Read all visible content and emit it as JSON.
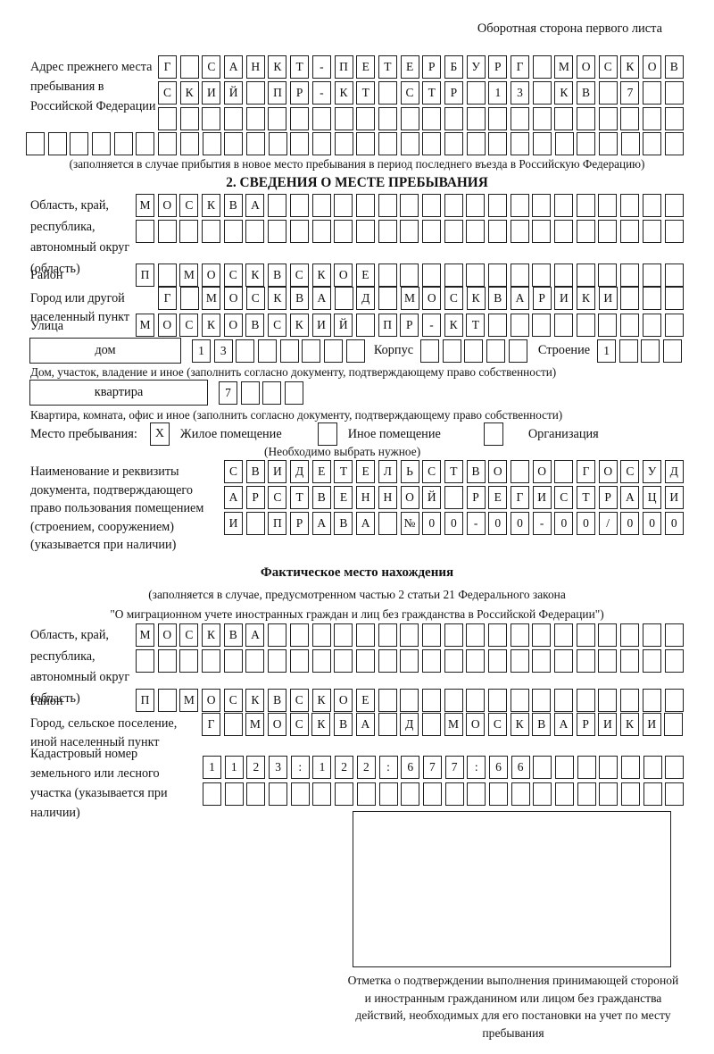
{
  "header": {
    "note": "Оборотная сторона первого листа"
  },
  "prev_address": {
    "label": "Адрес прежнего места пребывания в Российской Федерации",
    "row1": {
      "cells": "Г САНКТ-ПЕТЕРБУРГ МОСКОВ",
      "len": 24
    },
    "row2": {
      "cells": "СКИЙ ПР-КТ СТР 13 КВ 7",
      "len": 24
    },
    "row3": {
      "cells": "",
      "len": 24
    },
    "row4": {
      "cells": "",
      "len": 30
    },
    "caption": "(заполняется в случае прибытия в новое место пребывания в период последнего въезда в Российскую Федерацию)"
  },
  "section2": {
    "title": "2. СВЕДЕНИЯ О МЕСТЕ ПРЕБЫВАНИЯ",
    "region": {
      "label": "Область, край, республика, автономный округ (область)",
      "row1": {
        "cells": "МОСКВА",
        "len": 25
      },
      "row2": {
        "cells": "",
        "len": 25
      }
    },
    "district": {
      "label": "Район",
      "row": {
        "cells": "П МОСКВСКОЕ",
        "len": 25
      }
    },
    "city": {
      "label": "Город или другой населенный пункт",
      "row": {
        "cells": "Г МОСКВА Д МОСКВАРИКИ",
        "len": 24
      }
    },
    "street": {
      "label": "Улица",
      "row": {
        "cells": "МОСКОВСКИЙ ПР-КТ",
        "len": 25
      }
    },
    "house": {
      "field_label": "дом",
      "number": {
        "cells": "13",
        "len": 8
      },
      "korpus_label": "Корпус",
      "korpus": {
        "cells": "",
        "len": 5
      },
      "stroenie_label": "Строение",
      "stroenie": {
        "cells": "1",
        "len": 4
      },
      "caption": "Дом, участок, владение и иное (заполнить согласно документу, подтверждающему право собственности)"
    },
    "apartment": {
      "field_label": "квартира",
      "number": {
        "cells": "7",
        "len": 4
      },
      "caption": "Квартира, комната, офис и иное (заполнить согласно документу, подтверждающему право собственности)"
    },
    "place_type": {
      "label": "Место пребывания:",
      "options": [
        {
          "mark": "X",
          "label": "Жилое помещение"
        },
        {
          "mark": "",
          "label": "Иное помещение"
        },
        {
          "mark": "",
          "label": "Организация"
        }
      ],
      "hint": "(Необходимо выбрать нужное)"
    },
    "document": {
      "label": "Наименование и реквизиты документа, подтверждающего право пользования помещением (строением, сооружением) (указывается при наличии)",
      "row1": {
        "cells": "СВИДЕТЕЛЬСТВО О ГОСУД",
        "len": 21
      },
      "row2": {
        "cells": "АРСТВЕННОЙ РЕГИСТРАЦИ",
        "len": 21
      },
      "row3": {
        "cells": "И ПРАВА №00-00-00/000",
        "len": 21
      }
    }
  },
  "actual_location": {
    "title": "Фактическое место нахождения",
    "caption_line1": "(заполняется в случае, предусмотренном частью 2 статьи 21 Федерального закона",
    "caption_line2": "\"О миграционном учете иностранных граждан и лиц без гражданства в Российской Федерации\")",
    "region": {
      "label": "Область, край, республика, автономный округ (область)",
      "row1": {
        "cells": "МОСКВА",
        "len": 25
      },
      "row2": {
        "cells": "",
        "len": 25
      }
    },
    "district": {
      "label": "Район",
      "row": {
        "cells": "П МОСКВСКОЕ",
        "len": 25
      }
    },
    "city": {
      "label": "Город, сельское поселение, иной населенный пункт",
      "row": {
        "cells": "Г МОСКВА Д МОСКВАРИКИ",
        "len": 22
      }
    },
    "cadastral": {
      "label": "Кадастровый номер земельного или лесного участка (указывается при наличии)",
      "row1": {
        "cells": "1123:122:677:66",
        "len": 22
      },
      "row2": {
        "cells": "",
        "len": 22
      }
    }
  },
  "stamp": {
    "caption": "Отметка о подтверждении выполнения принимающей стороной и иностранным гражданином или лицом без гражданства действий, необходимых для его постановки на учет по месту пребывания"
  }
}
